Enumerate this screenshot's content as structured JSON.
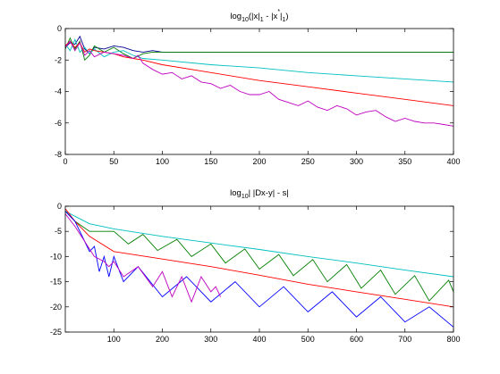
{
  "chart_data": [
    {
      "type": "line",
      "title_parts": [
        "log",
        "10",
        "(|x|",
        "1",
        " - |x",
        "*",
        "|",
        "1",
        ")"
      ],
      "xlim": [
        0,
        400
      ],
      "ylim": [
        -8,
        0
      ],
      "xticks": [
        0,
        50,
        100,
        150,
        200,
        250,
        300,
        350,
        400
      ],
      "yticks": [
        -8,
        -6,
        -4,
        -2,
        0
      ],
      "grid": false,
      "series": [
        {
          "color": "#00008f",
          "x": [
            0,
            5,
            10,
            15,
            20,
            25,
            30,
            40,
            50,
            60,
            70,
            80,
            90,
            100,
            120,
            150,
            200,
            250,
            300,
            350,
            400
          ],
          "y": [
            -1.2,
            -0.9,
            -1.0,
            -0.5,
            -1.3,
            -1.6,
            -1.2,
            -1.3,
            -1.1,
            -1.2,
            -1.4,
            -1.5,
            -1.4,
            -1.5,
            -1.5,
            -1.5,
            -1.5,
            -1.5,
            -1.5,
            -1.5,
            -1.5
          ]
        },
        {
          "color": "#007f00",
          "x": [
            0,
            5,
            10,
            15,
            20,
            25,
            30,
            40,
            50,
            60,
            70,
            80,
            90,
            100,
            120,
            150,
            200,
            250,
            300,
            350,
            400
          ],
          "y": [
            -1.3,
            -0.6,
            -1.3,
            -0.8,
            -2.0,
            -1.7,
            -1.1,
            -1.5,
            -1.2,
            -1.6,
            -1.9,
            -1.6,
            -1.5,
            -1.5,
            -1.5,
            -1.5,
            -1.5,
            -1.5,
            -1.5,
            -1.5,
            -1.5
          ]
        },
        {
          "color": "#00bfbf",
          "x": [
            0,
            5,
            10,
            15,
            20,
            25,
            30,
            40,
            50,
            60,
            70,
            80,
            100,
            150,
            200,
            250,
            300,
            350,
            400
          ],
          "y": [
            -1.0,
            -1.4,
            -0.7,
            -1.5,
            -1.2,
            -1.6,
            -1.3,
            -1.8,
            -1.5,
            -1.4,
            -1.7,
            -1.9,
            -2.0,
            -2.3,
            -2.5,
            -2.8,
            -3.0,
            -3.2,
            -3.4
          ]
        },
        {
          "color": "#ff0000",
          "x": [
            0,
            5,
            10,
            15,
            20,
            25,
            30,
            40,
            50,
            60,
            70,
            80,
            100,
            150,
            200,
            250,
            300,
            350,
            400
          ],
          "y": [
            -1.1,
            -0.8,
            -1.2,
            -0.9,
            -1.5,
            -1.3,
            -1.4,
            -1.5,
            -1.6,
            -1.8,
            -1.9,
            -2.0,
            -2.3,
            -2.8,
            -3.3,
            -3.7,
            -4.1,
            -4.5,
            -4.9
          ]
        },
        {
          "color": "#bf00bf",
          "x": [
            0,
            5,
            10,
            15,
            20,
            25,
            30,
            40,
            50,
            60,
            70,
            75,
            80,
            90,
            100,
            110,
            120,
            130,
            140,
            150,
            160,
            170,
            180,
            190,
            200,
            210,
            220,
            230,
            240,
            250,
            260,
            270,
            280,
            290,
            300,
            310,
            320,
            330,
            340,
            350,
            360,
            370,
            380,
            390,
            400
          ],
          "y": [
            -1.2,
            -0.8,
            -1.4,
            -0.9,
            -1.7,
            -1.4,
            -1.8,
            -1.5,
            -1.6,
            -1.7,
            -1.9,
            -1.7,
            -2.2,
            -2.6,
            -2.9,
            -2.8,
            -3.2,
            -3.0,
            -3.4,
            -3.5,
            -3.8,
            -3.6,
            -4.0,
            -4.2,
            -4.2,
            -4.0,
            -4.5,
            -4.7,
            -4.9,
            -4.6,
            -5.0,
            -5.2,
            -4.9,
            -5.1,
            -5.5,
            -5.3,
            -5.2,
            -5.6,
            -5.9,
            -5.7,
            -5.9,
            -6.0,
            -6.0,
            -6.1,
            -6.2
          ]
        }
      ]
    },
    {
      "type": "line",
      "title_parts": [
        "log",
        "10",
        "| |Dx-y| - s|"
      ],
      "xlim": [
        0,
        800
      ],
      "ylim": [
        -25,
        0
      ],
      "xticks": [
        100,
        200,
        300,
        400,
        500,
        600,
        700,
        800
      ],
      "yticks": [
        -25,
        -20,
        -15,
        -10,
        -5,
        0
      ],
      "grid": false,
      "series": [
        {
          "color": "#00bfbf",
          "x": [
            0,
            20,
            50,
            100,
            200,
            300,
            400,
            500,
            600,
            700,
            800
          ],
          "y": [
            -1,
            -2,
            -3.5,
            -4.5,
            -6,
            -7.3,
            -8.6,
            -10,
            -11.3,
            -12.7,
            -14
          ]
        },
        {
          "color": "#007f00",
          "x": [
            0,
            20,
            50,
            100,
            130,
            160,
            190,
            230,
            260,
            300,
            330,
            370,
            400,
            440,
            470,
            510,
            540,
            580,
            610,
            650,
            680,
            720,
            750,
            790,
            800
          ],
          "y": [
            -1,
            -3,
            -5,
            -5,
            -7.5,
            -5.6,
            -8.8,
            -6.6,
            -10,
            -7.5,
            -11.3,
            -8.5,
            -12.5,
            -9.6,
            -13.8,
            -10.6,
            -15,
            -11.6,
            -16.3,
            -12.7,
            -17.5,
            -13.8,
            -18.8,
            -14.7,
            -17
          ]
        },
        {
          "color": "#ff0000",
          "x": [
            0,
            20,
            50,
            100,
            200,
            300,
            400,
            500,
            600,
            700,
            800
          ],
          "y": [
            -0.5,
            -3,
            -6,
            -9,
            -10.5,
            -12,
            -13.7,
            -15.5,
            -17,
            -18.5,
            -20
          ]
        },
        {
          "color": "#0000ff",
          "x": [
            0,
            20,
            40,
            50,
            60,
            70,
            80,
            90,
            100,
            120,
            150,
            200,
            250,
            300,
            350,
            400,
            450,
            500,
            550,
            600,
            650,
            700,
            750,
            800
          ],
          "y": [
            -1,
            -3,
            -7,
            -9,
            -8,
            -13,
            -10,
            -14,
            -10,
            -15,
            -12,
            -18,
            -14,
            -19,
            -15,
            -20,
            -16,
            -21,
            -17,
            -22,
            -18,
            -23,
            -20,
            -24
          ]
        },
        {
          "color": "#bf00bf",
          "x": [
            0,
            20,
            40,
            60,
            80,
            90,
            100,
            120,
            150,
            180,
            200,
            220,
            240,
            260,
            280,
            300,
            310,
            320
          ],
          "y": [
            -1.5,
            -4,
            -7,
            -10,
            -11,
            -12,
            -11,
            -14,
            -12,
            -16,
            -13,
            -18,
            -14,
            -19,
            -14,
            -17,
            -16,
            -18
          ]
        }
      ]
    }
  ]
}
